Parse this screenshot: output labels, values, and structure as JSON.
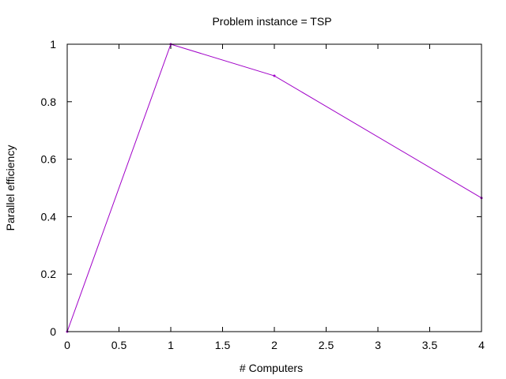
{
  "chart_data": {
    "type": "line",
    "title": "Problem instance = TSP",
    "xlabel": "# Computers",
    "ylabel": "Parallel efficiency",
    "xlim": [
      0,
      4
    ],
    "ylim": [
      0,
      1
    ],
    "x_ticks": [
      "0",
      "0.5",
      "1",
      "1.5",
      "2",
      "2.5",
      "3",
      "3.5",
      "4"
    ],
    "y_ticks": [
      "0",
      "0.2",
      "0.4",
      "0.6",
      "0.8",
      "1"
    ],
    "grid": false,
    "series": [
      {
        "color": "#a000c8",
        "x": [
          0,
          1,
          2,
          4
        ],
        "y": [
          0,
          1.0,
          0.89,
          0.465
        ]
      }
    ]
  }
}
